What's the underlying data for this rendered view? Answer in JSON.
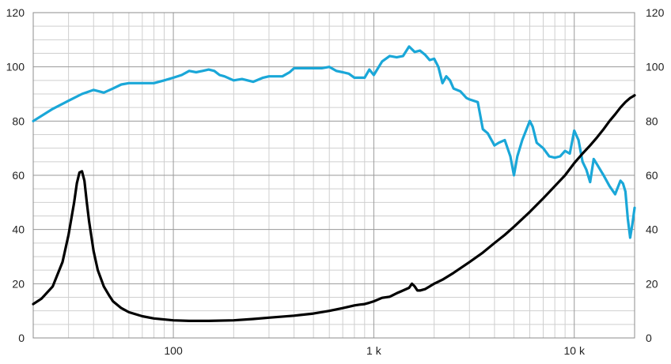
{
  "chart_data": {
    "type": "line",
    "title": "",
    "xlabel": "",
    "ylabel": "",
    "x_scale": "log",
    "xlim": [
      20,
      20000
    ],
    "ylim": [
      0,
      120
    ],
    "grid": true,
    "legend": "none",
    "x_tick_labels": [
      {
        "value": 100,
        "label": "100"
      },
      {
        "value": 1000,
        "label": "1 k"
      },
      {
        "value": 10000,
        "label": "10 k"
      }
    ],
    "y_ticks_left": [
      0,
      20,
      40,
      60,
      80,
      100,
      120
    ],
    "y_ticks_right": [
      0,
      20,
      40,
      60,
      80,
      100,
      120
    ],
    "series": [
      {
        "color": "#1aa7d8",
        "x": [
          20,
          25,
          30,
          35,
          40,
          45,
          50,
          55,
          60,
          70,
          80,
          90,
          100,
          110,
          120,
          130,
          140,
          150,
          160,
          170,
          180,
          200,
          220,
          250,
          280,
          300,
          350,
          380,
          400,
          450,
          500,
          550,
          600,
          650,
          700,
          750,
          800,
          850,
          900,
          950,
          1000,
          1100,
          1200,
          1300,
          1400,
          1500,
          1600,
          1700,
          1800,
          1900,
          2000,
          2100,
          2200,
          2300,
          2400,
          2500,
          2700,
          2900,
          3000,
          3300,
          3500,
          3700,
          4000,
          4200,
          4500,
          4800,
          5000,
          5200,
          5500,
          6000,
          6200,
          6500,
          7000,
          7500,
          8000,
          8500,
          9000,
          9500,
          10000,
          10500,
          11000,
          11500,
          12000,
          12500,
          13000,
          14000,
          15000,
          16000,
          17000,
          17500,
          18000,
          18500,
          19000,
          19500,
          20000
        ],
        "y": [
          80,
          84.5,
          87.5,
          90,
          91.5,
          90.5,
          92,
          93.5,
          94,
          94,
          94,
          95,
          96,
          97,
          98.5,
          98,
          98.5,
          99,
          98.5,
          97,
          96.5,
          95,
          95.5,
          94.5,
          96,
          96.5,
          96.5,
          98,
          99.5,
          99.5,
          99.5,
          99.5,
          100,
          98.5,
          98,
          97.5,
          96,
          96,
          96,
          99,
          97,
          102,
          104,
          103.5,
          104,
          107.5,
          105.5,
          106,
          104.5,
          102.5,
          103,
          100,
          94,
          96.5,
          95,
          92,
          91,
          88.5,
          88,
          87,
          77,
          75.5,
          71,
          72,
          73,
          67,
          60,
          67,
          73,
          80,
          78,
          72,
          70,
          67,
          66.5,
          67,
          69,
          68,
          76.5,
          73,
          65,
          62,
          57.5,
          66,
          64,
          60,
          56,
          53,
          58,
          57,
          54,
          44,
          37,
          42,
          48
        ]
      },
      {
        "color": "#000000",
        "x": [
          20,
          22,
          25,
          28,
          30,
          32,
          33,
          34,
          35,
          36,
          37,
          38,
          40,
          42,
          45,
          48,
          50,
          55,
          60,
          70,
          80,
          100,
          120,
          150,
          200,
          250,
          300,
          400,
          500,
          600,
          700,
          800,
          850,
          900,
          950,
          1000,
          1100,
          1200,
          1300,
          1400,
          1500,
          1550,
          1600,
          1650,
          1700,
          1800,
          1900,
          2000,
          2200,
          2500,
          3000,
          3500,
          4000,
          4500,
          5000,
          6000,
          7000,
          8000,
          9000,
          10000,
          11000,
          12000,
          13000,
          14000,
          15000,
          16000,
          17000,
          18000,
          19000,
          20000
        ],
        "y": [
          12.5,
          14.5,
          19,
          28,
          38,
          50,
          57,
          61,
          61.5,
          58,
          50,
          43,
          32,
          25,
          19,
          15.5,
          13.5,
          11,
          9.5,
          8,
          7.2,
          6.5,
          6.3,
          6.3,
          6.5,
          7,
          7.5,
          8.2,
          9,
          10,
          11,
          12,
          12.3,
          12.5,
          13,
          13.5,
          14.8,
          15.2,
          16.5,
          17.5,
          18.5,
          20,
          19,
          17.5,
          17.5,
          18,
          19,
          20,
          21.5,
          24,
          28,
          31.5,
          35,
          38,
          41,
          46.5,
          51.5,
          56,
          60,
          64.5,
          68,
          71,
          74,
          77,
          80,
          82.5,
          85,
          87,
          88.5,
          89.5
        ]
      }
    ]
  }
}
